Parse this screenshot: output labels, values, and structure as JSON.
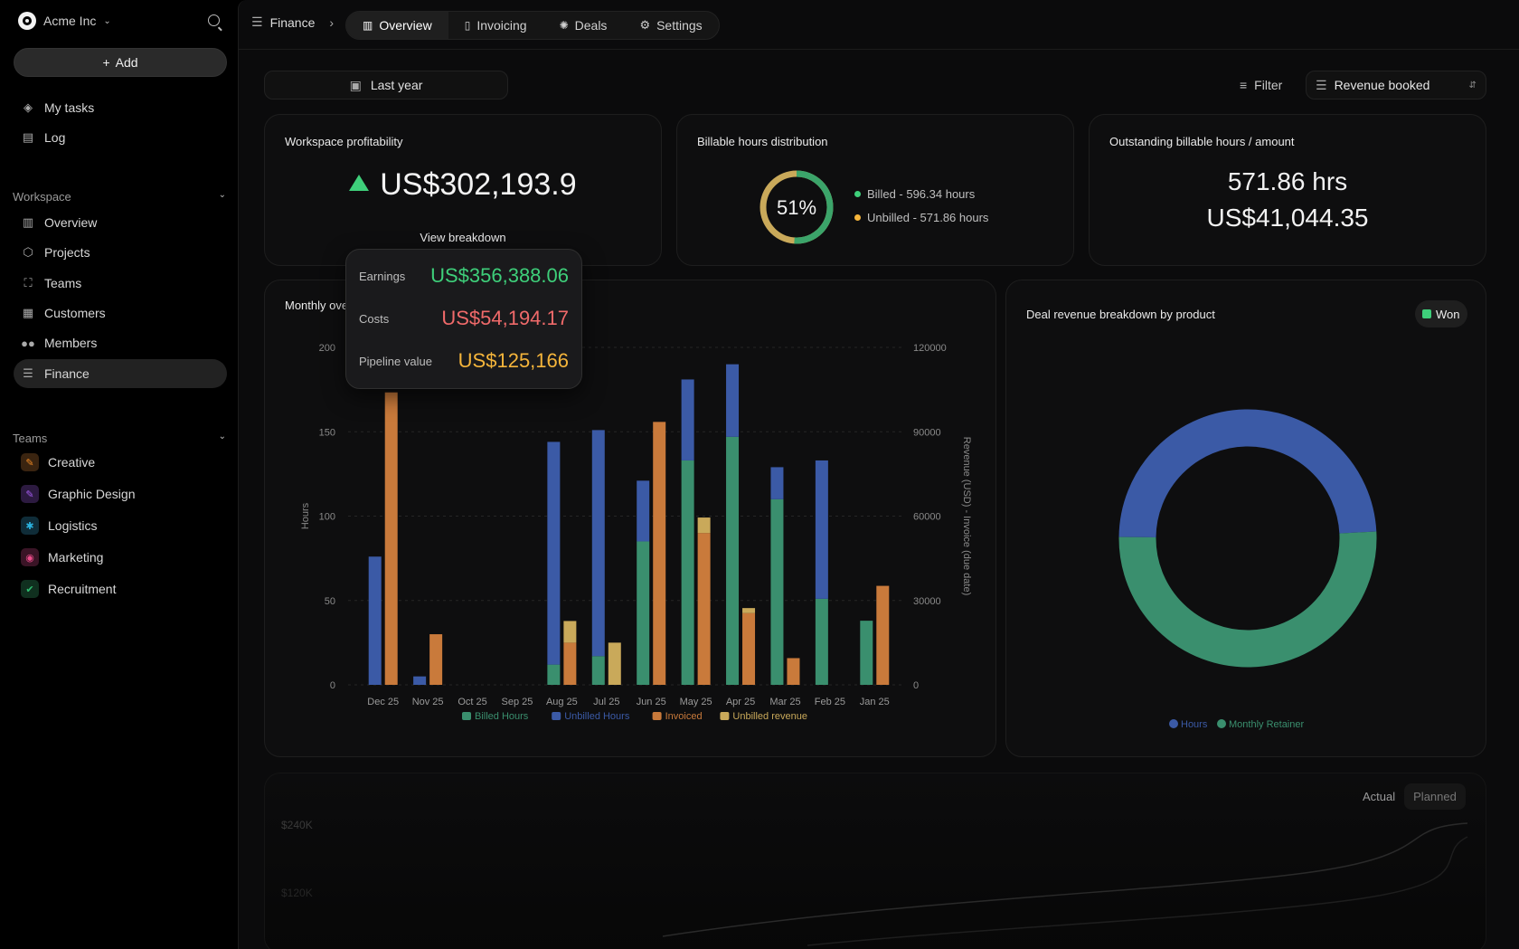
{
  "sidebar": {
    "org_name": "Acme Inc",
    "add_label": "Add",
    "top_items": [
      {
        "label": "My tasks",
        "icon": "stack-icon"
      },
      {
        "label": "Log",
        "icon": "log-icon"
      }
    ],
    "workspace_title": "Workspace",
    "workspace_items": [
      {
        "label": "Overview",
        "icon": "bar-chart-icon"
      },
      {
        "label": "Projects",
        "icon": "box-icon"
      },
      {
        "label": "Teams",
        "icon": "team-icon"
      },
      {
        "label": "Customers",
        "icon": "building-icon"
      },
      {
        "label": "Members",
        "icon": "users-icon"
      },
      {
        "label": "Finance",
        "icon": "database-icon",
        "active": true
      }
    ],
    "teams_title": "Teams",
    "teams": [
      {
        "label": "Creative",
        "color": "#f08a24"
      },
      {
        "label": "Graphic Design",
        "color": "#a55cf0"
      },
      {
        "label": "Logistics",
        "color": "#2bb3e0"
      },
      {
        "label": "Marketing",
        "color": "#ec4c8a"
      },
      {
        "label": "Recruitment",
        "color": "#2fbf71"
      }
    ]
  },
  "topbar": {
    "breadcrumb": "Finance",
    "tabs": [
      {
        "label": "Overview",
        "active": true
      },
      {
        "label": "Invoicing"
      },
      {
        "label": "Deals"
      },
      {
        "label": "Settings"
      }
    ]
  },
  "toolbar": {
    "date_range": "Last year",
    "filter_label": "Filter",
    "metric_select": "Revenue booked"
  },
  "profitability": {
    "title": "Workspace profitability",
    "value": "US$302,193.9",
    "link": "View breakdown"
  },
  "tooltip": {
    "earnings_label": "Earnings",
    "earnings_value": "US$356,388.06",
    "costs_label": "Costs",
    "costs_value": "US$54,194.17",
    "pipeline_label": "Pipeline value",
    "pipeline_value": "US$125,166"
  },
  "billable": {
    "title": "Billable hours distribution",
    "percent": "51%",
    "percent_value": 51,
    "billed": "Billed - 596.34 hours",
    "unbilled": "Unbilled - 571.86 hours"
  },
  "outstanding": {
    "title": "Outstanding billable hours / amount",
    "hours": "571.86 hrs",
    "amount": "US$41,044.35"
  },
  "monthly": {
    "title": "Monthly ove"
  },
  "deal": {
    "title": "Deal revenue breakdown by product",
    "badge": "Won"
  },
  "bottom": {
    "seg_actual": "Actual",
    "seg_planned": "Planned",
    "y1": "$240K",
    "y2": "$120K"
  },
  "colors": {
    "billed": "#3a8f6e",
    "unbilled": "#3b5aa6",
    "invoiced": "#c97a3b",
    "unbilled_revenue": "#c9a95a",
    "green": "#3ecf7a",
    "red": "#f06a6a",
    "amber": "#f5b53b"
  },
  "chart_data": [
    {
      "type": "bar",
      "title": "Monthly ove",
      "categories": [
        "Dec 25",
        "Nov 25",
        "Oct 25",
        "Sep 25",
        "Aug 25",
        "Jul 25",
        "Jun 25",
        "May 25",
        "Apr 25",
        "Mar 25",
        "Feb 25",
        "Jan 25"
      ],
      "ylabel": "Hours",
      "y2label": "Revenue (USD) - Invoice (due date)",
      "ylim": [
        0,
        200
      ],
      "y2lim": [
        0,
        120000
      ],
      "yticks": [
        "0",
        "50",
        "100",
        "150",
        "200"
      ],
      "y2ticks": [
        "0",
        "30000",
        "60000",
        "90000",
        "120000"
      ],
      "series": [
        {
          "name": "Billed Hours",
          "axis": "left",
          "stack": "hours",
          "values": [
            0,
            0,
            0,
            0,
            12,
            17,
            85,
            133,
            147,
            110,
            51,
            38
          ]
        },
        {
          "name": "Unbilled Hours",
          "axis": "left",
          "stack": "hours",
          "values": [
            76,
            5,
            0,
            0,
            132,
            134,
            36,
            48,
            43,
            19,
            82,
            0
          ]
        },
        {
          "name": "Invoiced",
          "axis": "right",
          "stack": "revenue",
          "values": [
            104000,
            18000,
            0,
            0,
            15000,
            0,
            93500,
            54000,
            25500,
            9500,
            0,
            35200
          ]
        },
        {
          "name": "Unbilled revenue",
          "axis": "right",
          "stack": "revenue",
          "values": [
            0,
            0,
            0,
            0,
            7700,
            15000,
            0,
            5500,
            1800,
            0,
            0,
            0
          ]
        }
      ],
      "legend": "bottom"
    },
    {
      "type": "pie",
      "title": "Deal revenue breakdown by product",
      "labels": [
        "Hours",
        "Monthly Retainer"
      ],
      "values": [
        49,
        51
      ],
      "legend": "bottom"
    }
  ]
}
